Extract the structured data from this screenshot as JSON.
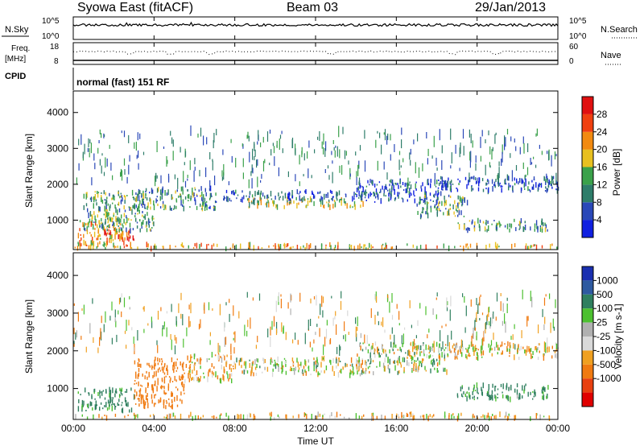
{
  "header": {
    "station": "Syowa East (fitACF)",
    "beam": "Beam 03",
    "date": "29/Jan/2013"
  },
  "top_panels": {
    "nsky_label": "N.Sky",
    "nsearch_label": "N.Search",
    "nsky_scale_hi": "10^5",
    "nsky_scale_lo": "10^0",
    "nsearch_scale_hi": "10^5",
    "nsearch_scale_lo": "10^0",
    "freq_label_1": "Freq.",
    "freq_label_2": "[MHz]",
    "freq_hi": "18",
    "freq_lo": "8",
    "nave_label": "Nave",
    "nave_hi": "60",
    "nave_lo": "0",
    "cpid_label": "CPID",
    "cpid_text": "normal (fast) 151 RF"
  },
  "x_axis": {
    "label": "Time UT",
    "ticks": [
      "00:00",
      "04:00",
      "08:00",
      "12:00",
      "16:00",
      "20:00",
      "00:00"
    ]
  },
  "colors": {
    "power_scale": [
      "#1020e0",
      "#2a48b8",
      "#2e7d6a",
      "#3aa14a",
      "#e8c020",
      "#f28a10",
      "#f04010",
      "#e01010"
    ],
    "velocity_scale": [
      "#1a2fb0",
      "#2e5aa0",
      "#2f7f5f",
      "#4cc030",
      "#b0b0b0",
      "#d9d9d9",
      "#f0a020",
      "#f07a10",
      "#e84010",
      "#e00000"
    ]
  },
  "chart_data": [
    {
      "type": "heatmap",
      "title": "",
      "ylabel": "Slant Range [km]",
      "ylim": [
        180,
        4600
      ],
      "xlim": [
        0,
        24
      ],
      "y_ticks": [
        "1000",
        "2000",
        "3000",
        "4000"
      ],
      "y_tick_values": [
        1000,
        2000,
        3000,
        4000
      ],
      "colorbar_label": "Power [dB]",
      "colorbar_ticks": [
        "4",
        "8",
        "12",
        "16",
        "20",
        "24",
        "28"
      ],
      "colorbar_range": [
        0,
        32
      ],
      "regions": [
        {
          "x": [
            0.2,
            2.5
          ],
          "y": [
            300,
            1000
          ],
          "value": 20
        },
        {
          "x": [
            1.5,
            3.0
          ],
          "y": [
            450,
            700
          ],
          "value": 28
        },
        {
          "x": [
            0.5,
            4.0
          ],
          "y": [
            700,
            1800
          ],
          "value": 12
        },
        {
          "x": [
            3.0,
            7.0
          ],
          "y": [
            1300,
            1900
          ],
          "value": 10
        },
        {
          "x": [
            7.0,
            9.0
          ],
          "y": [
            1500,
            1800
          ],
          "value": 8
        },
        {
          "x": [
            8.5,
            14.5
          ],
          "y": [
            1350,
            1600
          ],
          "value": 16
        },
        {
          "x": [
            9.0,
            15.0
          ],
          "y": [
            1550,
            1800
          ],
          "value": 6
        },
        {
          "x": [
            14.0,
            18.5
          ],
          "y": [
            1500,
            2100
          ],
          "value": 6
        },
        {
          "x": [
            17.0,
            19.5
          ],
          "y": [
            1100,
            1700
          ],
          "value": 12
        },
        {
          "x": [
            18.0,
            24.0
          ],
          "y": [
            1800,
            2200
          ],
          "value": 6
        },
        {
          "x": [
            19.0,
            23.5
          ],
          "y": [
            700,
            1000
          ],
          "value": 12
        },
        {
          "x": [
            0.0,
            24.0
          ],
          "y": [
            200,
            320
          ],
          "value": 20
        }
      ]
    },
    {
      "type": "heatmap",
      "title": "",
      "ylabel": "Slant Range [km]",
      "ylim": [
        180,
        4600
      ],
      "xlim": [
        0,
        24
      ],
      "y_ticks": [
        "1000",
        "2000",
        "3000",
        "4000"
      ],
      "y_tick_values": [
        1000,
        2000,
        3000,
        4000
      ],
      "colorbar_label": "Velocity [m s-1]",
      "colorbar_ticks": [
        "1000",
        "500",
        "100",
        "25",
        "-25",
        "-100",
        "-500",
        "-1000"
      ],
      "regions": [
        {
          "x": [
            0.2,
            3.0
          ],
          "y": [
            400,
            1000
          ],
          "value": 200
        },
        {
          "x": [
            3.0,
            5.5
          ],
          "y": [
            500,
            1800
          ],
          "value": -300
        },
        {
          "x": [
            5.5,
            8.0
          ],
          "y": [
            1200,
            1900
          ],
          "value": -80
        },
        {
          "x": [
            8.0,
            14.5
          ],
          "y": [
            1350,
            1800
          ],
          "value": 0
        },
        {
          "x": [
            14.0,
            18.5
          ],
          "y": [
            1400,
            2200
          ],
          "value": 20
        },
        {
          "x": [
            18.0,
            24.0
          ],
          "y": [
            1800,
            2200
          ],
          "value": -40
        },
        {
          "x": [
            19.0,
            23.5
          ],
          "y": [
            700,
            1100
          ],
          "value": 150
        },
        {
          "x": [
            0.0,
            24.0
          ],
          "y": [
            200,
            320
          ],
          "value": -60
        }
      ]
    }
  ]
}
